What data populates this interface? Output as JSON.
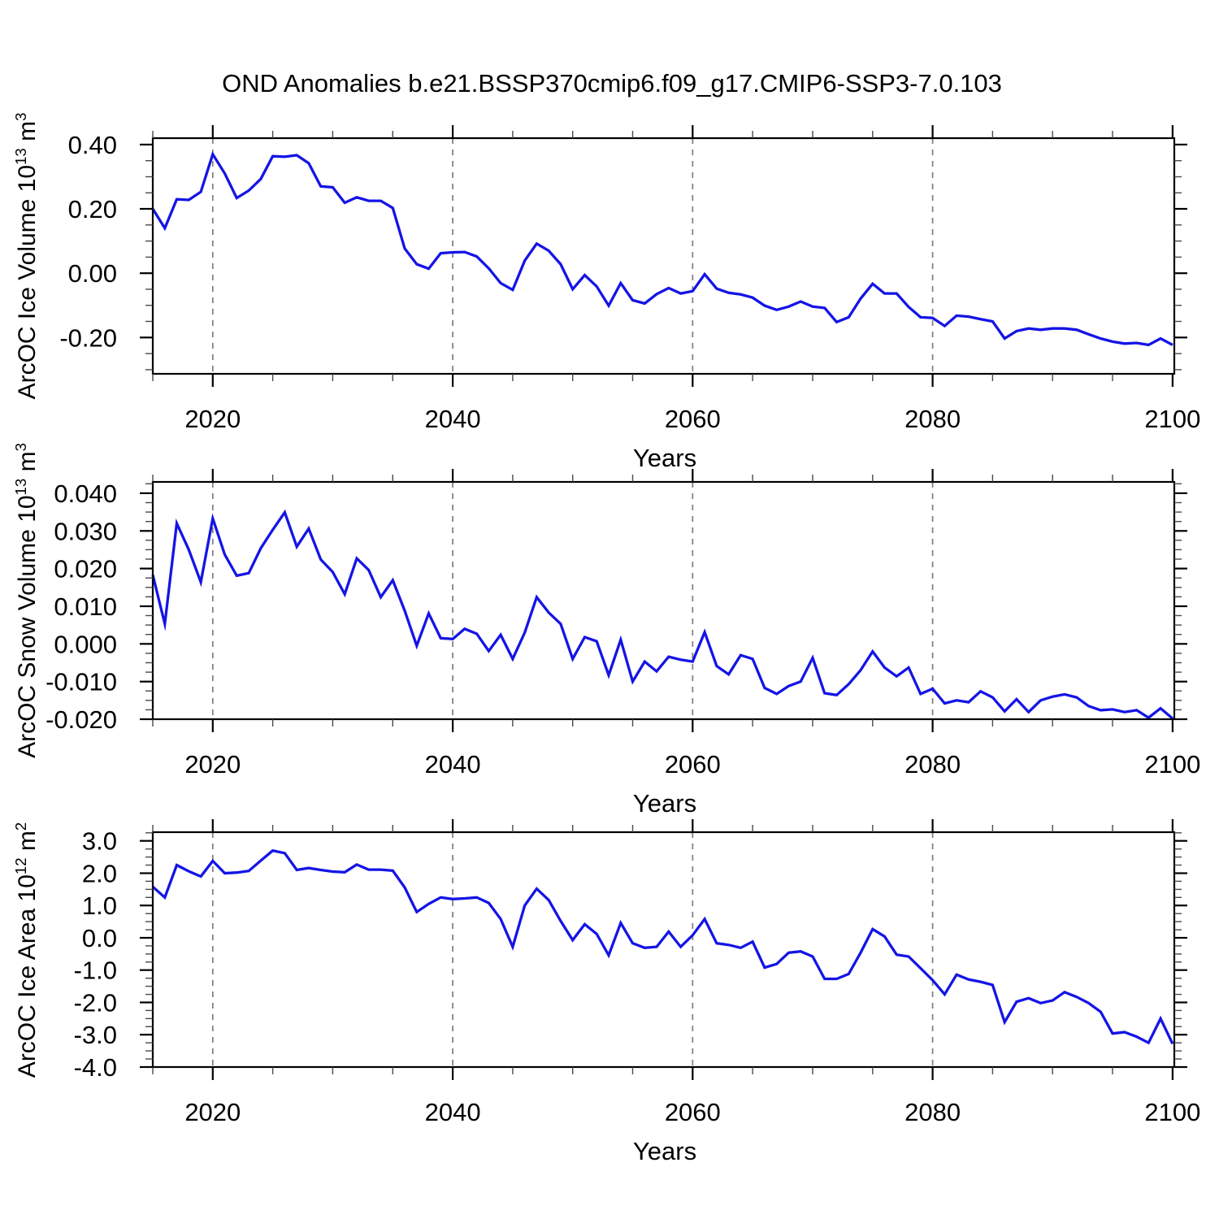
{
  "title": "OND Anomalies b.e21.BSSP370cmip6.f09_g17.CMIP6-SSP3-7.0.103",
  "chart_data": {
    "type": "line",
    "layout": "three stacked panels sharing the same x axis",
    "x_label": "Years",
    "x_ticks": [
      2020,
      2040,
      2060,
      2080,
      2100
    ],
    "x_tick_labels": [
      "2020",
      "2040",
      "2060",
      "2080",
      "2100"
    ],
    "x_minor_tick_step": 5,
    "xlim": [
      2015,
      2100
    ],
    "grid_years": [
      2020,
      2040,
      2060,
      2080
    ],
    "grid_style": "vertical dashed gray lines at major x ticks",
    "legend": "none",
    "line_color": "#1414e6",
    "axis_color": "#000000",
    "background": "#ffffff",
    "x": [
      2015,
      2016,
      2017,
      2018,
      2019,
      2020,
      2021,
      2022,
      2023,
      2024,
      2025,
      2026,
      2027,
      2028,
      2029,
      2030,
      2031,
      2032,
      2033,
      2034,
      2035,
      2036,
      2037,
      2038,
      2039,
      2040,
      2041,
      2042,
      2043,
      2044,
      2045,
      2046,
      2047,
      2048,
      2049,
      2050,
      2051,
      2052,
      2053,
      2054,
      2055,
      2056,
      2057,
      2058,
      2059,
      2060,
      2061,
      2062,
      2063,
      2064,
      2065,
      2066,
      2067,
      2068,
      2069,
      2070,
      2071,
      2072,
      2073,
      2074,
      2075,
      2076,
      2077,
      2078,
      2079,
      2080,
      2081,
      2082,
      2083,
      2084,
      2085,
      2086,
      2087,
      2088,
      2089,
      2090,
      2091,
      2092,
      2093,
      2094,
      2095,
      2096,
      2097,
      2098,
      2099,
      2100
    ],
    "panels": [
      {
        "name": "ice-volume",
        "ylabel": "ArcOC Ice Volume 10^13 m^3",
        "ylabel_parts": {
          "name": "ArcOC Ice Volume",
          "scale_base": "10",
          "scale_exp": "13",
          "unit": "m",
          "unit_exp": "3"
        },
        "ylim": [
          -0.313,
          0.42
        ],
        "y_ticks": [
          0.4,
          0.2,
          0.0,
          -0.2
        ],
        "y_tick_labels": [
          "0.40",
          "0.20",
          "0.00",
          "-0.20"
        ],
        "y_minor_tick_step": 0.05,
        "values": [
          0.2,
          0.14,
          0.23,
          0.228,
          0.253,
          0.37,
          0.31,
          0.234,
          0.257,
          0.293,
          0.364,
          0.362,
          0.367,
          0.342,
          0.27,
          0.267,
          0.219,
          0.236,
          0.225,
          0.225,
          0.203,
          0.077,
          0.028,
          0.014,
          0.062,
          0.065,
          0.066,
          0.052,
          0.015,
          -0.031,
          -0.052,
          0.039,
          0.092,
          0.07,
          0.028,
          -0.05,
          -0.006,
          -0.041,
          -0.101,
          -0.031,
          -0.084,
          -0.094,
          -0.065,
          -0.046,
          -0.063,
          -0.056,
          -0.003,
          -0.048,
          -0.061,
          -0.066,
          -0.076,
          -0.101,
          -0.114,
          -0.104,
          -0.088,
          -0.104,
          -0.108,
          -0.152,
          -0.137,
          -0.079,
          -0.033,
          -0.063,
          -0.063,
          -0.105,
          -0.137,
          -0.139,
          -0.164,
          -0.132,
          -0.135,
          -0.143,
          -0.15,
          -0.203,
          -0.18,
          -0.172,
          -0.176,
          -0.172,
          -0.172,
          -0.176,
          -0.19,
          -0.203,
          -0.213,
          -0.219,
          -0.217,
          -0.223,
          -0.203,
          -0.223
        ]
      },
      {
        "name": "snow-volume",
        "ylabel": "ArcOC Snow Volume 10^13 m^3",
        "ylabel_parts": {
          "name": "ArcOC Snow Volume",
          "scale_base": "10",
          "scale_exp": "13",
          "unit": "m",
          "unit_exp": "3"
        },
        "ylim": [
          -0.02,
          0.043
        ],
        "y_ticks": [
          0.04,
          0.03,
          0.02,
          0.01,
          0.0,
          -0.01,
          -0.02
        ],
        "y_tick_labels": [
          "0.040",
          "0.030",
          "0.020",
          "0.010",
          "0.000",
          "-0.010",
          "-0.020"
        ],
        "y_minor_tick_step": 0.0025,
        "values": [
          0.0183,
          0.0053,
          0.032,
          0.025,
          0.0164,
          0.0333,
          0.0237,
          0.0181,
          0.0188,
          0.0254,
          0.0303,
          0.0349,
          0.0258,
          0.0306,
          0.0224,
          0.0191,
          0.0132,
          0.0227,
          0.0196,
          0.0124,
          0.0169,
          0.0088,
          -0.0005,
          0.0081,
          0.0015,
          0.0013,
          0.004,
          0.0027,
          -0.0019,
          0.0024,
          -0.004,
          0.003,
          0.0124,
          0.0083,
          0.0053,
          -0.004,
          0.0018,
          0.0007,
          -0.0083,
          0.0011,
          -0.01,
          -0.0047,
          -0.0073,
          -0.0034,
          -0.0042,
          -0.0047,
          0.0031,
          -0.0059,
          -0.0081,
          -0.003,
          -0.004,
          -0.0117,
          -0.0133,
          -0.0112,
          -0.01,
          -0.0037,
          -0.0131,
          -0.0136,
          -0.0107,
          -0.007,
          -0.002,
          -0.0063,
          -0.0086,
          -0.0063,
          -0.0133,
          -0.0119,
          -0.0158,
          -0.015,
          -0.0155,
          -0.0126,
          -0.0142,
          -0.0179,
          -0.0147,
          -0.0181,
          -0.015,
          -0.014,
          -0.0134,
          -0.0142,
          -0.0165,
          -0.0176,
          -0.0174,
          -0.0181,
          -0.0176,
          -0.0196,
          -0.0171,
          -0.0198
        ]
      },
      {
        "name": "ice-area",
        "ylabel": "ArcOC Ice Area 10^12 m^2",
        "ylabel_parts": {
          "name": "ArcOC Ice Area",
          "scale_base": "10",
          "scale_exp": "12",
          "unit": "m",
          "unit_exp": "2"
        },
        "ylim": [
          -4.0,
          3.27
        ],
        "y_ticks": [
          3.0,
          2.0,
          1.0,
          0.0,
          -1.0,
          -2.0,
          -3.0,
          -4.0
        ],
        "y_tick_labels": [
          "3.0",
          "2.0",
          "1.0",
          "0.0",
          "-1.0",
          "-2.0",
          "-3.0",
          "-4.0"
        ],
        "y_minor_tick_step": 0.25,
        "values": [
          1.58,
          1.25,
          2.25,
          2.06,
          1.9,
          2.38,
          2.0,
          2.02,
          2.07,
          2.39,
          2.7,
          2.62,
          2.1,
          2.16,
          2.1,
          2.05,
          2.03,
          2.27,
          2.11,
          2.11,
          2.08,
          1.56,
          0.8,
          1.05,
          1.25,
          1.2,
          1.22,
          1.25,
          1.08,
          0.58,
          -0.28,
          1.0,
          1.52,
          1.17,
          0.52,
          -0.07,
          0.42,
          0.12,
          -0.54,
          0.46,
          -0.17,
          -0.31,
          -0.28,
          0.19,
          -0.28,
          0.08,
          0.58,
          -0.17,
          -0.22,
          -0.31,
          -0.12,
          -0.92,
          -0.81,
          -0.46,
          -0.42,
          -0.58,
          -1.27,
          -1.27,
          -1.12,
          -0.46,
          0.27,
          0.04,
          -0.52,
          -0.58,
          -0.94,
          -1.31,
          -1.75,
          -1.14,
          -1.29,
          -1.36,
          -1.46,
          -2.61,
          -1.98,
          -1.87,
          -2.02,
          -1.94,
          -1.68,
          -1.83,
          -2.02,
          -2.29,
          -2.96,
          -2.92,
          -3.06,
          -3.25,
          -2.5,
          -3.28
        ]
      }
    ]
  }
}
